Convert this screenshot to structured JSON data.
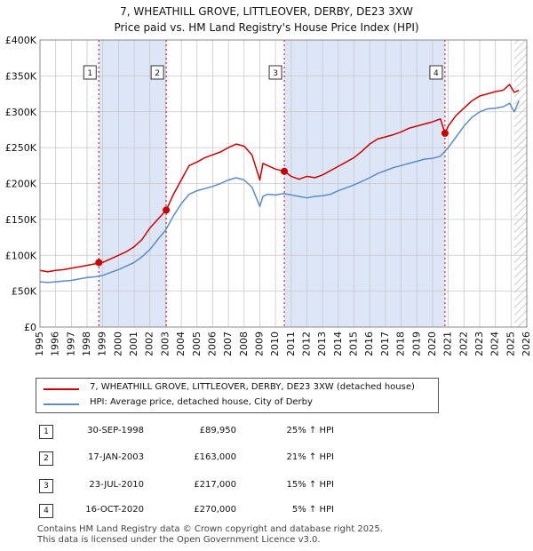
{
  "title_line1": "7, WHEATHILL GROVE, LITTLEOVER, DERBY, DE23 3XW",
  "title_line2": "Price paid vs. HM Land Registry's House Price Index (HPI)",
  "colors": {
    "red": "#cc0000",
    "blue": "#5b8cc8",
    "shade": "#dde6f7",
    "grid": "#c8c8c8"
  },
  "chart_data": {
    "type": "line",
    "xlim": [
      1995,
      2026
    ],
    "ylim": [
      0,
      400000
    ],
    "x_ticks": [
      1995,
      1996,
      1997,
      1998,
      1999,
      2000,
      2001,
      2002,
      2003,
      2004,
      2005,
      2006,
      2007,
      2008,
      2009,
      2010,
      2011,
      2012,
      2013,
      2014,
      2015,
      2016,
      2017,
      2018,
      2019,
      2020,
      2021,
      2022,
      2023,
      2024,
      2025,
      2026
    ],
    "y_ticks": [
      0,
      50000,
      100000,
      150000,
      200000,
      250000,
      300000,
      350000,
      400000
    ],
    "y_tick_labels": [
      "£0",
      "£50K",
      "£100K",
      "£150K",
      "£200K",
      "£250K",
      "£300K",
      "£350K",
      "£400K"
    ],
    "series": [
      {
        "name": "7, WHEATHILL GROVE, LITTLEOVER, DERBY, DE23 3XW (detached house)",
        "color": "#cc0000",
        "x": [
          1995.0,
          1995.5,
          1996.0,
          1996.5,
          1997.0,
          1997.5,
          1998.0,
          1998.5,
          1998.75,
          1999.0,
          1999.5,
          2000.0,
          2000.5,
          2001.0,
          2001.5,
          2002.0,
          2002.5,
          2003.04,
          2003.5,
          2004.0,
          2004.5,
          2005.0,
          2005.5,
          2006.0,
          2006.5,
          2007.0,
          2007.5,
          2008.0,
          2008.5,
          2009.0,
          2009.2,
          2009.5,
          2010.0,
          2010.56,
          2011.0,
          2011.5,
          2012.0,
          2012.5,
          2013.0,
          2013.5,
          2014.0,
          2014.5,
          2015.0,
          2015.5,
          2016.0,
          2016.5,
          2017.0,
          2017.5,
          2018.0,
          2018.5,
          2019.0,
          2019.5,
          2020.0,
          2020.5,
          2020.79,
          2021.0,
          2021.5,
          2022.0,
          2022.5,
          2023.0,
          2023.5,
          2024.0,
          2024.5,
          2024.9,
          2025.2,
          2025.5
        ],
        "y": [
          79000,
          77000,
          79000,
          80000,
          82000,
          84000,
          86000,
          88000,
          89950,
          90000,
          95000,
          100000,
          105000,
          112000,
          122000,
          138000,
          150000,
          163000,
          185000,
          205000,
          225000,
          230000,
          236000,
          240000,
          244000,
          250000,
          255000,
          252000,
          240000,
          205000,
          228000,
          225000,
          220000,
          217000,
          210000,
          206000,
          210000,
          208000,
          212000,
          218000,
          224000,
          230000,
          236000,
          245000,
          255000,
          262000,
          265000,
          268000,
          272000,
          277000,
          280000,
          283000,
          286000,
          290000,
          270000,
          280000,
          295000,
          305000,
          315000,
          322000,
          325000,
          328000,
          330000,
          338000,
          327000,
          330000
        ]
      },
      {
        "name": "HPI: Average price, detached house, City of Derby",
        "color": "#5b8cc8",
        "x": [
          1995.0,
          1995.5,
          1996.0,
          1996.5,
          1997.0,
          1997.5,
          1998.0,
          1998.5,
          1999.0,
          1999.5,
          2000.0,
          2000.5,
          2001.0,
          2001.5,
          2002.0,
          2002.5,
          2003.0,
          2003.5,
          2004.0,
          2004.5,
          2005.0,
          2005.5,
          2006.0,
          2006.5,
          2007.0,
          2007.5,
          2008.0,
          2008.5,
          2009.0,
          2009.2,
          2009.5,
          2010.0,
          2010.5,
          2011.0,
          2011.5,
          2012.0,
          2012.5,
          2013.0,
          2013.5,
          2014.0,
          2014.5,
          2015.0,
          2015.5,
          2016.0,
          2016.5,
          2017.0,
          2017.5,
          2018.0,
          2018.5,
          2019.0,
          2019.5,
          2020.0,
          2020.5,
          2021.0,
          2021.5,
          2022.0,
          2022.5,
          2023.0,
          2023.5,
          2024.0,
          2024.5,
          2024.9,
          2025.2,
          2025.5
        ],
        "y": [
          63000,
          62000,
          63000,
          64000,
          65000,
          67000,
          69000,
          70000,
          72000,
          76000,
          80000,
          85000,
          90000,
          98000,
          108000,
          122000,
          135000,
          155000,
          172000,
          185000,
          190000,
          193000,
          196000,
          200000,
          205000,
          208000,
          205000,
          195000,
          168000,
          182000,
          185000,
          184000,
          186000,
          184000,
          182000,
          180000,
          182000,
          183000,
          185000,
          190000,
          194000,
          198000,
          203000,
          208000,
          214000,
          218000,
          222000,
          225000,
          228000,
          231000,
          234000,
          235000,
          238000,
          250000,
          265000,
          280000,
          292000,
          300000,
          304000,
          305000,
          307000,
          312000,
          300000,
          315000
        ]
      }
    ],
    "sales": [
      {
        "label": "1",
        "x": 1998.75,
        "price": 89950
      },
      {
        "label": "2",
        "x": 2003.04,
        "price": 163000
      },
      {
        "label": "3",
        "x": 2010.56,
        "price": 217000
      },
      {
        "label": "4",
        "x": 2020.79,
        "price": 270000
      }
    ],
    "shaded_ranges": [
      [
        1998.75,
        2003.04
      ],
      [
        2010.56,
        2020.79
      ]
    ],
    "hatched_from": 2025.2
  },
  "legend": {
    "red_label": "7, WHEATHILL GROVE, LITTLEOVER, DERBY, DE23 3XW (detached house)",
    "blue_label": "HPI: Average price, detached house, City of Derby"
  },
  "transactions": [
    {
      "num": "1",
      "date": "30-SEP-1998",
      "price": "£89,950",
      "hpi": "25% ↑ HPI"
    },
    {
      "num": "2",
      "date": "17-JAN-2003",
      "price": "£163,000",
      "hpi": "21% ↑ HPI"
    },
    {
      "num": "3",
      "date": "23-JUL-2010",
      "price": "£217,000",
      "hpi": "15% ↑ HPI"
    },
    {
      "num": "4",
      "date": "16-OCT-2020",
      "price": "£270,000",
      "hpi": "5% ↑ HPI"
    }
  ],
  "footer_line1": "Contains HM Land Registry data © Crown copyright and database right 2025.",
  "footer_line2": "This data is licensed under the Open Government Licence v3.0."
}
